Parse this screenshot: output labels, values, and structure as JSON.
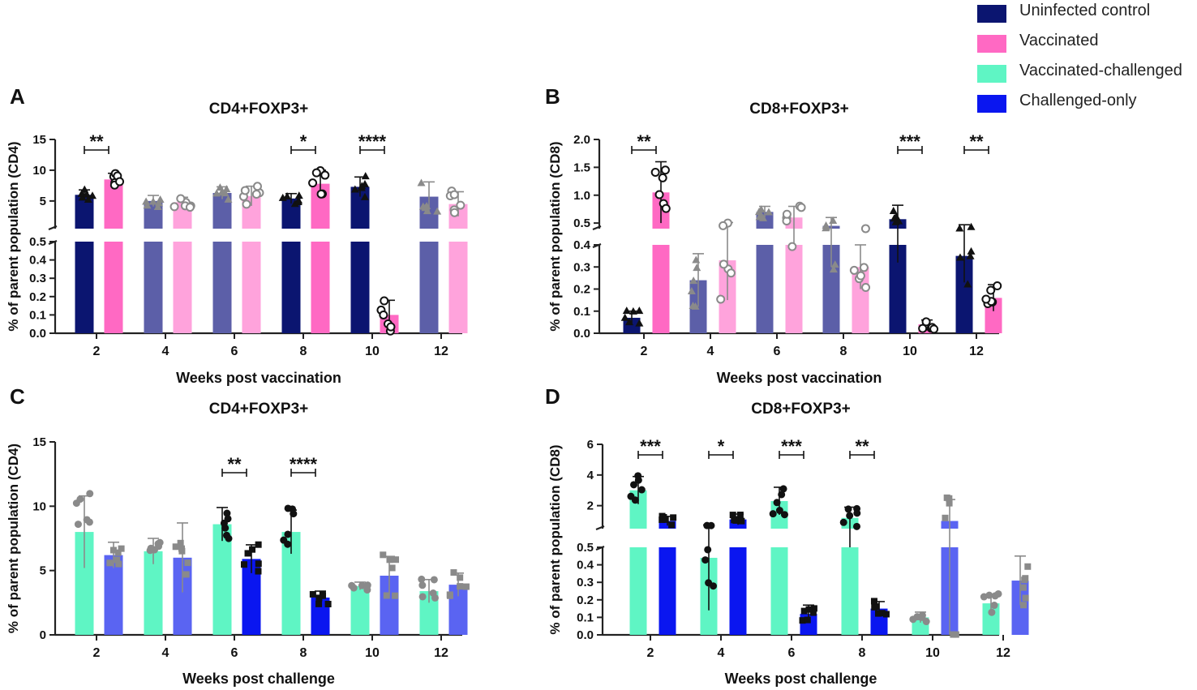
{
  "legend": {
    "items": [
      {
        "label": "Uninfected control",
        "color": "#0b1570"
      },
      {
        "label": "Vaccinated",
        "color": "#ff69c3"
      },
      {
        "label": "Vaccinated-challenged",
        "color": "#5ff5c4"
      },
      {
        "label": "Challenged-only",
        "color": "#0a16f0"
      }
    ]
  },
  "chart_data": [
    {
      "panel": "A",
      "type": "bar",
      "title": "CD4+FOXP3+",
      "ylabel": "% of parent population (CD4)",
      "xlabel": "Weeks post vaccination",
      "categories": [
        "2",
        "4",
        "6",
        "8",
        "10",
        "12"
      ],
      "y_upper_range": [
        0.5,
        15
      ],
      "y_upper_ticks": [
        "5",
        "10",
        "15"
      ],
      "y_lower_range": [
        0,
        0.5
      ],
      "y_lower_ticks": [
        "0.0",
        "0.1",
        "0.2",
        "0.3",
        "0.4",
        "0.5"
      ],
      "series": [
        {
          "name": "Uninfected control",
          "values": [
            6.0,
            5.0,
            6.3,
            5.4,
            7.3,
            5.7
          ],
          "errors": [
            0.8,
            0.9,
            1.0,
            0.8,
            1.6,
            2.4
          ]
        },
        {
          "name": "Vaccinated",
          "values": [
            8.5,
            4.8,
            5.8,
            7.8,
            0.1,
            4.5
          ],
          "errors": [
            1.0,
            0.8,
            1.6,
            2.2,
            0.08,
            2.0
          ]
        }
      ],
      "significance": [
        {
          "category": "2",
          "label": "**"
        },
        {
          "category": "8",
          "label": "*"
        },
        {
          "category": "10",
          "label": "****"
        }
      ]
    },
    {
      "panel": "B",
      "type": "bar",
      "title": "CD8+FOXP3+",
      "ylabel": "% of parent population (CD8)",
      "xlabel": "Weeks post vaccination",
      "categories": [
        "2",
        "4",
        "6",
        "8",
        "10",
        "12"
      ],
      "y_upper_range": [
        0.4,
        2.0
      ],
      "y_upper_ticks": [
        "0.5",
        "1.0",
        "1.5",
        "2.0"
      ],
      "y_lower_range": [
        0,
        0.4
      ],
      "y_lower_ticks": [
        "0.0",
        "0.1",
        "0.2",
        "0.3",
        "0.4"
      ],
      "series": [
        {
          "name": "Uninfected control",
          "values": [
            0.07,
            0.24,
            0.7,
            0.45,
            0.57,
            0.35
          ],
          "errors": [
            0.03,
            0.12,
            0.1,
            0.15,
            0.25,
            0.12
          ]
        },
        {
          "name": "Vaccinated",
          "values": [
            1.05,
            0.33,
            0.6,
            0.3,
            0.04,
            0.16
          ],
          "errors": [
            0.55,
            0.18,
            0.2,
            0.1,
            0.02,
            0.06
          ]
        }
      ],
      "significance": [
        {
          "category": "2",
          "label": "**"
        },
        {
          "category": "10",
          "label": "***"
        },
        {
          "category": "12",
          "label": "**"
        }
      ]
    },
    {
      "panel": "C",
      "type": "bar",
      "title": "CD4+FOXP3+",
      "ylabel": "% of parent population (CD4)",
      "xlabel": "Weeks post challenge",
      "categories": [
        "2",
        "4",
        "6",
        "8",
        "10",
        "12"
      ],
      "y_range": [
        0,
        15
      ],
      "y_ticks": [
        "0",
        "5",
        "10",
        "15"
      ],
      "series": [
        {
          "name": "Vaccinated-challenged",
          "values": [
            8.0,
            6.5,
            8.6,
            8.0,
            3.8,
            3.4
          ],
          "errors": [
            2.8,
            1.0,
            1.3,
            1.7,
            0.3,
            0.9
          ]
        },
        {
          "name": "Challenged-only",
          "values": [
            6.2,
            6.0,
            5.9,
            2.9,
            4.6,
            3.9
          ],
          "errors": [
            1.0,
            2.7,
            1.1,
            0.5,
            1.5,
            0.9
          ]
        }
      ],
      "significance": [
        {
          "category": "6",
          "label": "**"
        },
        {
          "category": "8",
          "label": "****"
        }
      ]
    },
    {
      "panel": "D",
      "type": "bar",
      "title": "CD8+FOXP3+",
      "ylabel": "% of parent population (CD8)",
      "xlabel": "Weeks post challenge",
      "categories": [
        "2",
        "4",
        "6",
        "8",
        "10",
        "12"
      ],
      "y_upper_range": [
        0.5,
        6
      ],
      "y_upper_ticks": [
        "2",
        "4",
        "6"
      ],
      "y_lower_range": [
        0,
        0.5
      ],
      "y_lower_ticks": [
        "0.0",
        "0.1",
        "0.2",
        "0.3",
        "0.4",
        "0.5"
      ],
      "series": [
        {
          "name": "Vaccinated-challenged",
          "values": [
            3.0,
            0.44,
            2.3,
            1.2,
            0.1,
            0.18
          ],
          "errors": [
            0.9,
            0.3,
            0.9,
            0.7,
            0.03,
            0.05
          ]
        },
        {
          "name": "Challenged-only",
          "values": [
            1.0,
            1.1,
            0.12,
            0.15,
            1.0,
            0.31
          ],
          "errors": [
            0.3,
            0.35,
            0.05,
            0.04,
            1.4,
            0.14
          ]
        }
      ],
      "significance": [
        {
          "category": "2",
          "label": "***"
        },
        {
          "category": "4",
          "label": "*"
        },
        {
          "category": "6",
          "label": "***"
        },
        {
          "category": "8",
          "label": "**"
        }
      ]
    }
  ]
}
